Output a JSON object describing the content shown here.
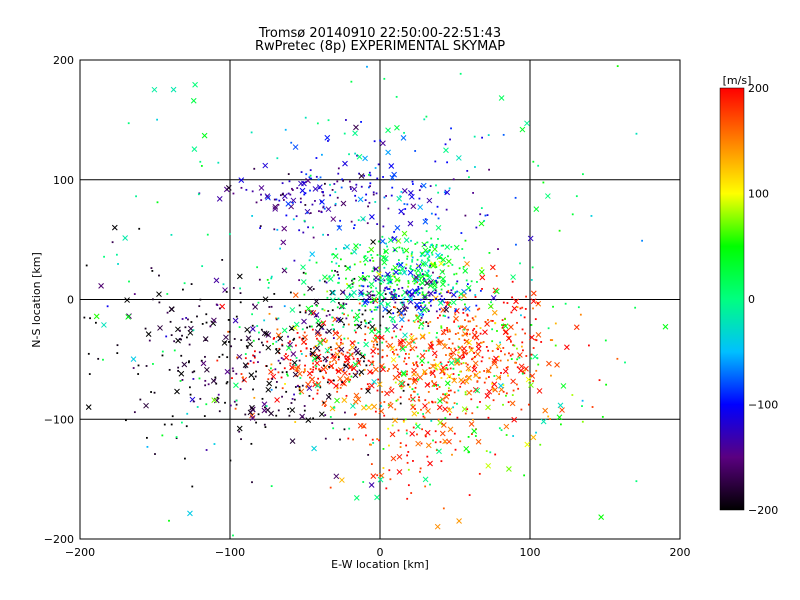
{
  "chart_data": {
    "type": "scatter",
    "title": "Tromsø 20140910 22:50:00-22:51:43",
    "subtitle": "RwPretec (8p) EXPERIMENTAL SKYMAP",
    "xlabel": "E-W location [km]",
    "ylabel": "N-S location [km]",
    "xlim": [
      -200,
      200
    ],
    "ylim": [
      -200,
      200
    ],
    "x_ticks": [
      -200,
      -100,
      0,
      100,
      200
    ],
    "y_ticks": [
      -200,
      -100,
      0,
      100,
      200
    ],
    "x_tick_labels": [
      "−200",
      "−100",
      "0",
      "100",
      "200"
    ],
    "y_tick_labels": [
      "−200",
      "−100",
      "0",
      "100",
      "200"
    ],
    "grid": "major ticks",
    "colorbar": {
      "label": "[m/s]",
      "min": -200,
      "max": 200,
      "ticks": [
        200,
        100,
        0,
        -100,
        -200
      ],
      "tick_labels": [
        "200",
        "100",
        "0",
        "−100",
        "−200"
      ],
      "colormap": [
        "#000000",
        "#5a0080",
        "#0000ff",
        "#00c0ff",
        "#00ff80",
        "#00ff00",
        "#ffff00",
        "#ff8000",
        "#ff0000"
      ]
    },
    "markers": [
      "dot",
      "cross"
    ],
    "clusters": [
      {
        "cx": 60,
        "cy": -40,
        "sx": 30,
        "sy": 25,
        "v": 180,
        "n": 320
      },
      {
        "cx": 10,
        "cy": -60,
        "sx": 50,
        "sy": 25,
        "v": 170,
        "n": 260
      },
      {
        "cx": -40,
        "cy": -50,
        "sx": 20,
        "sy": 15,
        "v": 190,
        "n": 140
      },
      {
        "cx": 25,
        "cy": -110,
        "sx": 25,
        "sy": 30,
        "v": 180,
        "n": 110
      },
      {
        "cx": -110,
        "cy": -40,
        "sx": 45,
        "sy": 35,
        "v": -190,
        "n": 230
      },
      {
        "cx": -60,
        "cy": -70,
        "sx": 30,
        "sy": 35,
        "v": -180,
        "n": 90
      },
      {
        "cx": -30,
        "cy": -10,
        "sx": 25,
        "sy": 20,
        "v": -190,
        "n": 80
      },
      {
        "cx": 15,
        "cy": 20,
        "sx": 25,
        "sy": 15,
        "v": 30,
        "n": 220
      },
      {
        "cx": 30,
        "cy": 40,
        "sx": 10,
        "sy": 8,
        "v": 10,
        "n": 50
      },
      {
        "cx": 20,
        "cy": 5,
        "sx": 20,
        "sy": 10,
        "v": -110,
        "n": 140
      },
      {
        "cx": 0,
        "cy": 85,
        "sx": 35,
        "sy": 25,
        "v": -110,
        "n": 170
      },
      {
        "cx": -60,
        "cy": 85,
        "sx": 20,
        "sy": 10,
        "v": -140,
        "n": 70
      },
      {
        "cx": -10,
        "cy": -20,
        "sx": 50,
        "sy": 25,
        "v": 20,
        "n": 140
      },
      {
        "cx": 60,
        "cy": -80,
        "sx": 40,
        "sy": 30,
        "v": 60,
        "n": 90
      },
      {
        "cx": 0,
        "cy": 0,
        "sx": 110,
        "sy": 100,
        "v": 0,
        "n": 240
      }
    ]
  }
}
